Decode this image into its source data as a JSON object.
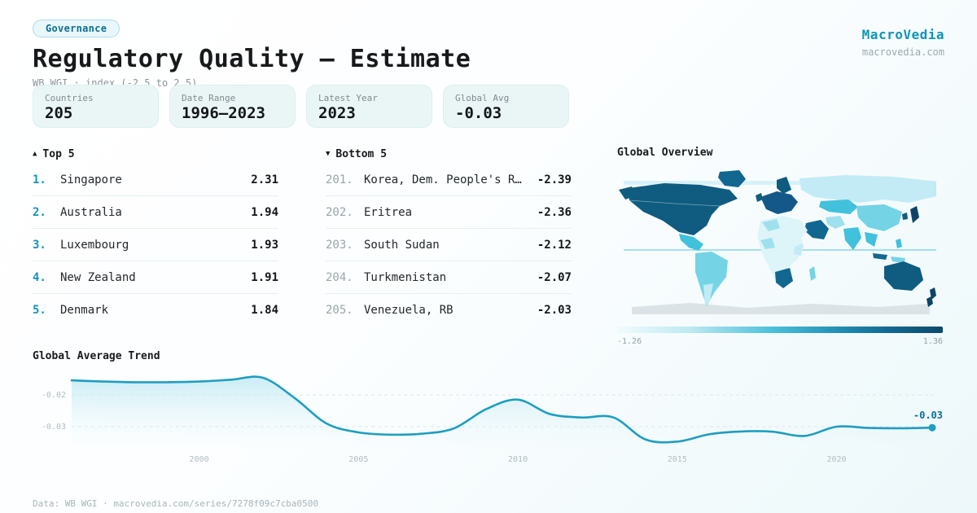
{
  "header": {
    "badge": "Governance",
    "title": "Regulatory Quality — Estimate",
    "subtitle": "WB WGI · index (-2.5 to 2.5)"
  },
  "brand": {
    "name": "MacroVedia",
    "site": "macrovedia.com"
  },
  "stats": [
    {
      "label": "Countries",
      "value": "205"
    },
    {
      "label": "Date Range",
      "value": "1996–2023"
    },
    {
      "label": "Latest Year",
      "value": "2023"
    },
    {
      "label": "Global Avg",
      "value": "-0.03"
    }
  ],
  "lists": {
    "top": {
      "icon": "▲",
      "title": "Top 5",
      "rows": [
        {
          "rank": "1.",
          "name": "Singapore",
          "value": "2.31"
        },
        {
          "rank": "2.",
          "name": "Australia",
          "value": "1.94"
        },
        {
          "rank": "3.",
          "name": "Luxembourg",
          "value": "1.93"
        },
        {
          "rank": "4.",
          "name": "New Zealand",
          "value": "1.91"
        },
        {
          "rank": "5.",
          "name": "Denmark",
          "value": "1.84"
        }
      ]
    },
    "bottom": {
      "icon": "▼",
      "title": "Bottom 5",
      "rows": [
        {
          "rank": "201.",
          "name": "Korea, Dem. People's R…",
          "value": "-2.39"
        },
        {
          "rank": "202.",
          "name": "Eritrea",
          "value": "-2.36"
        },
        {
          "rank": "203.",
          "name": "South Sudan",
          "value": "-2.12"
        },
        {
          "rank": "204.",
          "name": "Turkmenistan",
          "value": "-2.07"
        },
        {
          "rank": "205.",
          "name": "Venezuela, RB",
          "value": "-2.03"
        }
      ]
    }
  },
  "map": {
    "title": "Global Overview",
    "legend_min": "-1.26",
    "legend_max": "1.36"
  },
  "trend": {
    "title": "Global Average Trend"
  },
  "footer": {
    "text": "Data: WB WGI · macrovedia.com/series/7278f09c7cba0500"
  },
  "colors": {
    "accent": "#1095b8",
    "accent_dark": "#0b7096",
    "heading": "#17191b",
    "muted": "#8b969b",
    "faint": "#b2bcc0",
    "card_bg": "#eaf6f5",
    "card_border": "#ddeef0",
    "badge_bg": "#e9f7fb",
    "badge_border": "#a9dcec",
    "row_divider": "#e6eff1",
    "line": "#1e9ec0",
    "map_dark": "#0f5c80",
    "map_deep": "#0d4368",
    "map_europe": "#14588a",
    "map_mid": "#41c1dc",
    "map_cyan": "#74d4e6",
    "map_light": "#c2ebf5",
    "map_pale": "#ddf4f9",
    "map_patch": "#9fe0ee",
    "map_dark2": "#11678f",
    "antarctica": "#dce3e6",
    "equator": "#54c3da",
    "legend_from": "#f2fbfd",
    "legend_mid": "#49c0da",
    "legend_to": "#0c4a6b"
  },
  "chart_data": [
    {
      "type": "heatmap",
      "subtype": "choropleth-world-map",
      "title": "Global Overview",
      "color_scale_min": -1.26,
      "color_scale_max": 1.36,
      "legend_position": "bottom"
    },
    {
      "type": "line",
      "title": "Global Average Trend",
      "x": [
        1996,
        1997,
        1998,
        1999,
        2000,
        2001,
        2002,
        2003,
        2004,
        2005,
        2006,
        2007,
        2008,
        2009,
        2010,
        2011,
        2012,
        2013,
        2014,
        2015,
        2016,
        2017,
        2018,
        2019,
        2020,
        2021,
        2022,
        2023
      ],
      "values": [
        -0.0154,
        -0.0158,
        -0.016,
        -0.016,
        -0.0158,
        -0.0152,
        -0.0146,
        -0.021,
        -0.029,
        -0.0318,
        -0.0325,
        -0.0322,
        -0.0305,
        -0.0245,
        -0.0215,
        -0.026,
        -0.0271,
        -0.0271,
        -0.034,
        -0.0347,
        -0.0324,
        -0.0315,
        -0.0316,
        -0.0329,
        -0.03,
        -0.0304,
        -0.0305,
        -0.0303
      ],
      "x_ticks": [
        2000,
        2005,
        2010,
        2015,
        2020
      ],
      "y_ticks": [
        -0.02,
        -0.03
      ],
      "ylim": [
        -0.037,
        -0.012
      ],
      "end_label": "-0.03",
      "area_fill": true,
      "grid": "horizontal-dashed",
      "legend_position": "none"
    }
  ]
}
